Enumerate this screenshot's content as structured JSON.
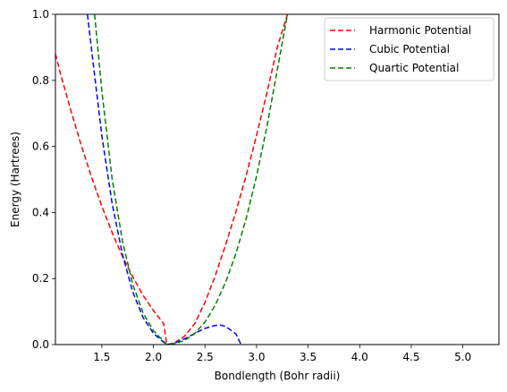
{
  "chart_data": {
    "type": "line",
    "title": "",
    "xlabel": "Bondlength (Bohr radii)",
    "ylabel": "Energy (Hartrees)",
    "xlim": [
      1.05,
      5.35
    ],
    "ylim": [
      0.0,
      1.0
    ],
    "xticks": [
      "1.5",
      "2.0",
      "2.5",
      "3.0",
      "3.5",
      "4.0",
      "4.5",
      "5.0"
    ],
    "yticks": [
      "0.0",
      "0.2",
      "0.4",
      "0.6",
      "0.8",
      "1.0"
    ],
    "grid": false,
    "legend_position": "top-right",
    "line_style": "dashed",
    "series": [
      {
        "name": "Harmonic Potential",
        "color": "#ff0000",
        "x": [
          1.05,
          1.1,
          1.2,
          1.3,
          1.4,
          1.5,
          1.6,
          1.7,
          1.8,
          1.9,
          2.0,
          2.1,
          2.13,
          2.2,
          2.3,
          2.4,
          2.5,
          2.6,
          2.7,
          2.8,
          2.9,
          3.0,
          3.1,
          3.2,
          3.3
        ],
        "y": [
          0.88,
          0.819,
          0.708,
          0.604,
          0.507,
          0.419,
          0.339,
          0.267,
          0.205,
          0.149,
          0.103,
          0.063,
          0.0,
          0.004,
          0.025,
          0.063,
          0.128,
          0.209,
          0.302,
          0.403,
          0.513,
          0.633,
          0.762,
          0.899,
          1.0
        ]
      },
      {
        "name": "Cubic Potential",
        "color": "#0000ff",
        "x": [
          1.36,
          1.4,
          1.5,
          1.6,
          1.7,
          1.8,
          1.9,
          2.0,
          2.1,
          2.13,
          2.2,
          2.3,
          2.4,
          2.5,
          2.6,
          2.65,
          2.7,
          2.8,
          2.85
        ],
        "y": [
          1.0,
          0.893,
          0.632,
          0.427,
          0.272,
          0.159,
          0.082,
          0.034,
          0.007,
          0.0,
          0.004,
          0.017,
          0.034,
          0.049,
          0.058,
          0.059,
          0.055,
          0.032,
          0.0
        ]
      },
      {
        "name": "Quartic Potential",
        "color": "#008000",
        "x": [
          1.43,
          1.5,
          1.6,
          1.7,
          1.8,
          1.9,
          2.0,
          2.1,
          2.13,
          2.2,
          2.3,
          2.4,
          2.5,
          2.6,
          2.7,
          2.8,
          2.9,
          3.0,
          3.1,
          3.2,
          3.3
        ],
        "y": [
          1.0,
          0.768,
          0.502,
          0.312,
          0.182,
          0.096,
          0.042,
          0.01,
          0.0,
          0.003,
          0.012,
          0.033,
          0.068,
          0.12,
          0.189,
          0.276,
          0.382,
          0.51,
          0.66,
          0.83,
          1.0
        ]
      }
    ]
  }
}
